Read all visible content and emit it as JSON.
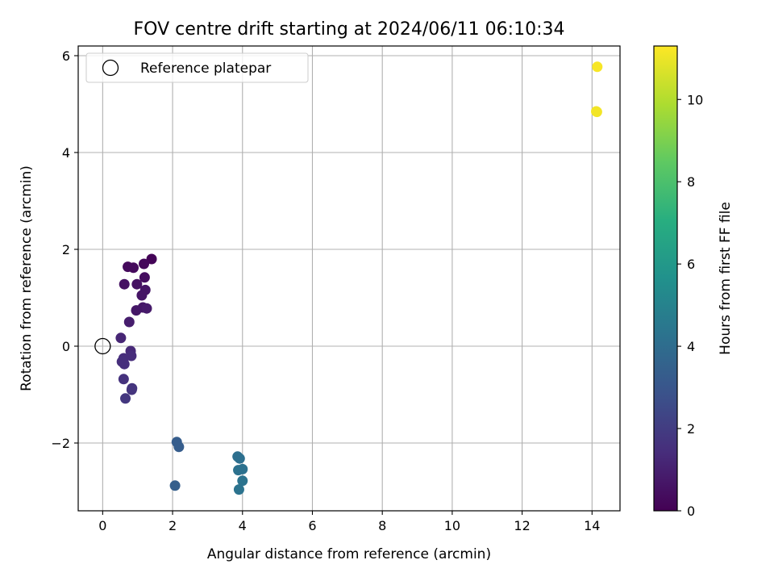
{
  "chart_data": {
    "type": "scatter",
    "title": "FOV centre drift starting at 2024/06/11 06:10:34",
    "xlabel": "Angular distance from reference (arcmin)",
    "ylabel": "Rotation from reference (arcmin)",
    "xlim": [
      -0.7,
      14.8
    ],
    "ylim": [
      -3.4,
      6.2
    ],
    "x_ticks": [
      0,
      2,
      4,
      6,
      8,
      10,
      12,
      14
    ],
    "y_ticks": [
      -2,
      0,
      2,
      4,
      6
    ],
    "x_tick_labels": [
      "0",
      "2",
      "4",
      "6",
      "8",
      "10",
      "12",
      "14"
    ],
    "y_tick_labels": [
      "−2",
      "0",
      "2",
      "4",
      "6"
    ],
    "grid": true,
    "legend": {
      "position": "top-left",
      "entries": [
        "Reference platepar"
      ]
    },
    "reference_point": {
      "x": 0,
      "y": 0
    },
    "colorbar": {
      "label": "Hours from first FF file",
      "colormap": "viridis",
      "range": [
        0,
        11.3
      ],
      "ticks": [
        0,
        2,
        4,
        6,
        8,
        10
      ],
      "tick_labels": [
        "0",
        "2",
        "4",
        "6",
        "8",
        "10"
      ]
    },
    "points": [
      {
        "x": 1.4,
        "y": 1.8,
        "hours": 0.1
      },
      {
        "x": 1.18,
        "y": 1.7,
        "hours": 0.2
      },
      {
        "x": 0.72,
        "y": 1.64,
        "hours": 0.3
      },
      {
        "x": 0.88,
        "y": 1.62,
        "hours": 0.3
      },
      {
        "x": 1.2,
        "y": 1.42,
        "hours": 0.4
      },
      {
        "x": 0.62,
        "y": 1.28,
        "hours": 0.5
      },
      {
        "x": 0.98,
        "y": 1.28,
        "hours": 0.5
      },
      {
        "x": 1.22,
        "y": 1.16,
        "hours": 0.6
      },
      {
        "x": 1.12,
        "y": 1.05,
        "hours": 0.6
      },
      {
        "x": 1.15,
        "y": 0.8,
        "hours": 0.7
      },
      {
        "x": 0.96,
        "y": 0.74,
        "hours": 0.7
      },
      {
        "x": 1.26,
        "y": 0.78,
        "hours": 0.8
      },
      {
        "x": 0.76,
        "y": 0.5,
        "hours": 0.9
      },
      {
        "x": 0.52,
        "y": 0.17,
        "hours": 1.2
      },
      {
        "x": 0.8,
        "y": -0.1,
        "hours": 1.3
      },
      {
        "x": 0.82,
        "y": -0.2,
        "hours": 1.4
      },
      {
        "x": 0.6,
        "y": -0.25,
        "hours": 1.4
      },
      {
        "x": 0.55,
        "y": -0.32,
        "hours": 1.5
      },
      {
        "x": 0.62,
        "y": -0.37,
        "hours": 1.5
      },
      {
        "x": 0.6,
        "y": -0.68,
        "hours": 1.6
      },
      {
        "x": 0.84,
        "y": -0.87,
        "hours": 1.7
      },
      {
        "x": 0.83,
        "y": -0.9,
        "hours": 1.7
      },
      {
        "x": 0.65,
        "y": -1.08,
        "hours": 1.8
      },
      {
        "x": 2.12,
        "y": -1.98,
        "hours": 3.3
      },
      {
        "x": 2.18,
        "y": -2.08,
        "hours": 3.3
      },
      {
        "x": 2.07,
        "y": -2.88,
        "hours": 3.4
      },
      {
        "x": 3.86,
        "y": -2.28,
        "hours": 4.1
      },
      {
        "x": 3.92,
        "y": -2.32,
        "hours": 4.1
      },
      {
        "x": 3.88,
        "y": -2.56,
        "hours": 4.2
      },
      {
        "x": 4.0,
        "y": -2.54,
        "hours": 4.2
      },
      {
        "x": 4.0,
        "y": -2.78,
        "hours": 4.3
      },
      {
        "x": 3.9,
        "y": -2.96,
        "hours": 4.3
      },
      {
        "x": 14.15,
        "y": 5.77,
        "hours": 11.2
      },
      {
        "x": 14.12,
        "y": 4.85,
        "hours": 11.1
      },
      {
        "x": 14.14,
        "y": 4.84,
        "hours": 11.1
      }
    ]
  }
}
